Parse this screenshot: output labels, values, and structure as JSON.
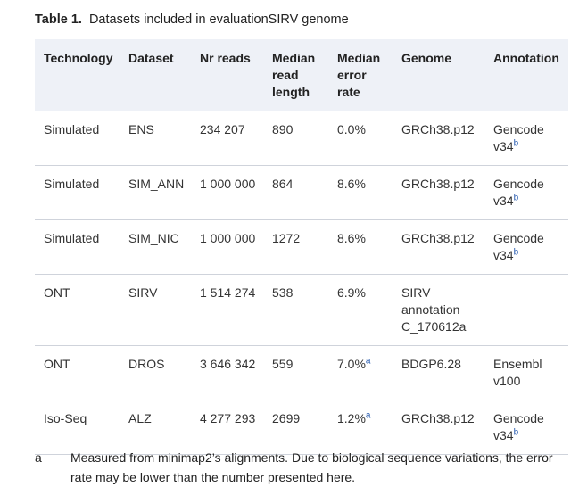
{
  "caption": {
    "label": "Table 1.",
    "text": "Datasets included in evaluationSIRV genome"
  },
  "table": {
    "headers": [
      "Technology",
      "Dataset",
      "Nr reads",
      "Median read length",
      "Median error rate",
      "Genome",
      "Annotation"
    ],
    "rows": [
      {
        "technology": "Simulated",
        "dataset": "ENS",
        "nr_reads": "234 207",
        "median_read_length": "890",
        "median_error_rate": "0.0%",
        "error_note": "",
        "genome": "GRCh38.p12",
        "annotation": "Gencode v34",
        "annotation_note": "b"
      },
      {
        "technology": "Simulated",
        "dataset": "SIM_ANN",
        "nr_reads": "1 000 000",
        "median_read_length": "864",
        "median_error_rate": "8.6%",
        "error_note": "",
        "genome": "GRCh38.p12",
        "annotation": "Gencode v34",
        "annotation_note": "b"
      },
      {
        "technology": "Simulated",
        "dataset": "SIM_NIC",
        "nr_reads": "1 000 000",
        "median_read_length": "1272",
        "median_error_rate": "8.6%",
        "error_note": "",
        "genome": "GRCh38.p12",
        "annotation": "Gencode v34",
        "annotation_note": "b"
      },
      {
        "technology": "ONT",
        "dataset": "SIRV",
        "nr_reads": "1 514 274",
        "median_read_length": "538",
        "median_error_rate": "6.9%",
        "error_note": "",
        "genome": "SIRV annotation C_170612a",
        "annotation": "",
        "annotation_note": ""
      },
      {
        "technology": "ONT",
        "dataset": "DROS",
        "nr_reads": "3 646 342",
        "median_read_length": "559",
        "median_error_rate": "7.0%",
        "error_note": "a",
        "genome": "BDGP6.28",
        "annotation": "Ensembl v100",
        "annotation_note": ""
      },
      {
        "technology": "Iso-Seq",
        "dataset": "ALZ",
        "nr_reads": "4 277 293",
        "median_read_length": "2699",
        "median_error_rate": "1.2%",
        "error_note": "a",
        "genome": "GRCh38.p12",
        "annotation": "Gencode v34",
        "annotation_note": "b"
      }
    ]
  },
  "footnote": {
    "mark": "a",
    "text": "Measured from minimap2’s alignments. Due to biological sequence variations, the error rate may be lower than the number presented here."
  }
}
